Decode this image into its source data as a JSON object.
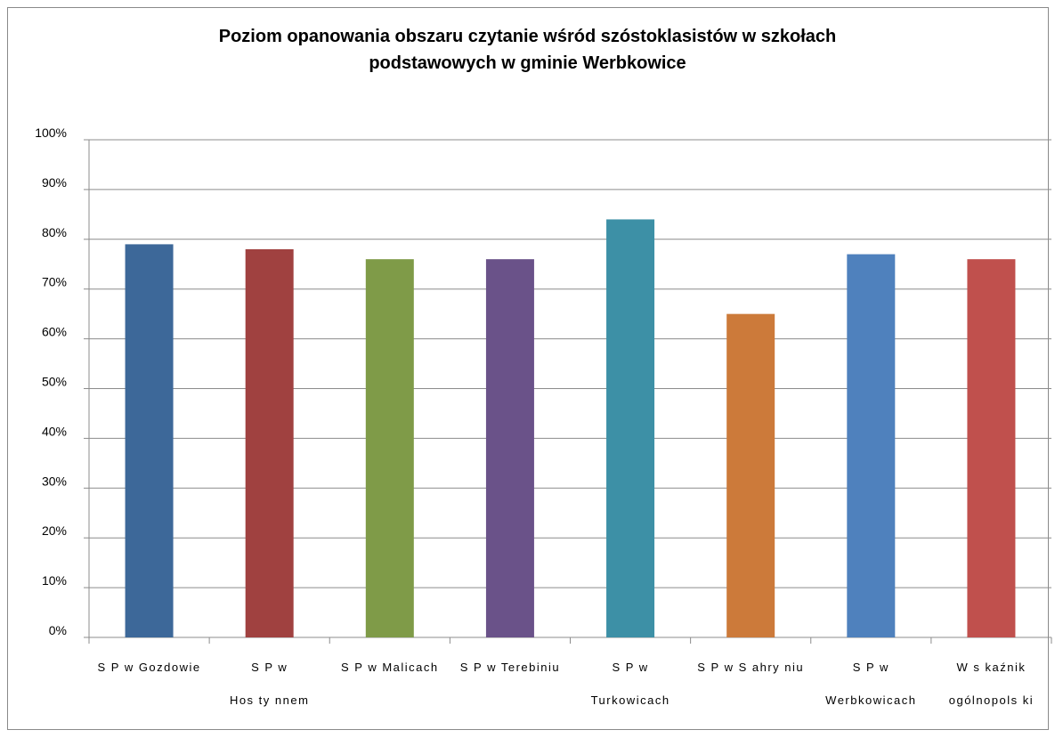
{
  "chart_data": {
    "type": "bar",
    "title_lines": [
      "Poziom opanowania obszaru czytanie wśród szóstoklasistów w  szkołach",
      "podstawowych w gminie Werbkowice"
    ],
    "categories": [
      [
        "S P  w Gozdowie"
      ],
      [
        "S P  w",
        "Hos ty nnem"
      ],
      [
        "S P  w Malicach"
      ],
      [
        "S P  w Terebiniu"
      ],
      [
        "S P  w",
        "Turkowicach"
      ],
      [
        "S P  w S ahry niu"
      ],
      [
        "S P  w",
        "Werbkowicach"
      ],
      [
        "W s kaźnik",
        "ogólnopols ki"
      ]
    ],
    "values": [
      79,
      78,
      76,
      76,
      84,
      65,
      77,
      76
    ],
    "colors": [
      "#3d6899",
      "#a04140",
      "#7f9b48",
      "#6a5289",
      "#3d90a6",
      "#cc7a3a",
      "#4f81bd",
      "#c0504d"
    ],
    "yticks": [
      "0%",
      "10%",
      "20%",
      "30%",
      "40%",
      "50%",
      "60%",
      "70%",
      "80%",
      "90%",
      "100%"
    ],
    "ylim": [
      0,
      100
    ],
    "grid": true,
    "legend": "none"
  }
}
